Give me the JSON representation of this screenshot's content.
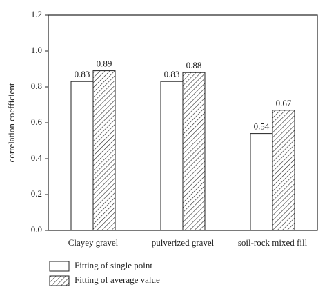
{
  "chart_data": {
    "type": "bar",
    "y_label": "correlation coefficient",
    "categories": [
      "Clayey gravel",
      "pulverized gravel",
      "soil-rock mixed fill"
    ],
    "series": [
      {
        "name": "Fitting of single point",
        "color": "#ffffff",
        "pattern": "none",
        "values": [
          0.83,
          0.83,
          0.54
        ]
      },
      {
        "name": "Fitting of average value",
        "color": "#ffffff",
        "pattern": "hatch",
        "values": [
          0.89,
          0.88,
          0.67
        ]
      }
    ],
    "ylim": [
      0,
      1.2
    ],
    "yticks": [
      {
        "value": 0,
        "label": "0.0"
      },
      {
        "value": 0.2,
        "label": "0.2"
      },
      {
        "value": 0.4,
        "label": "0.4"
      },
      {
        "value": 0.6,
        "label": "0.6"
      },
      {
        "value": 0.8,
        "label": "0.8"
      },
      {
        "value": 1,
        "label": "1.0"
      },
      {
        "value": 1.2,
        "label": "1.2"
      }
    ],
    "grid": false,
    "legend": "bottom-left"
  }
}
